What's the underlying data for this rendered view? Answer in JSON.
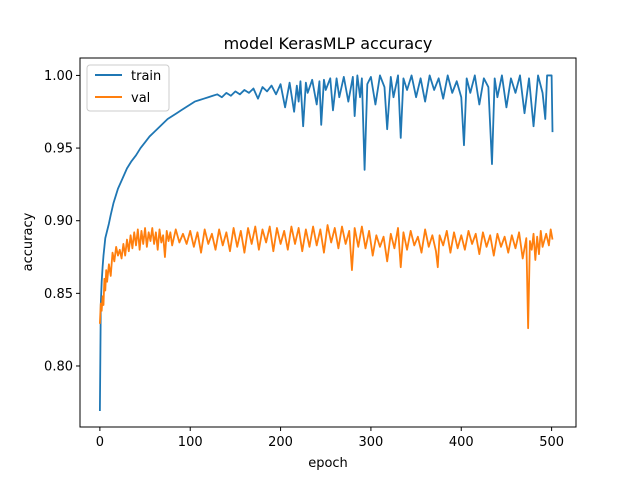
{
  "chart_data": {
    "type": "line",
    "title": "model KerasMLP accuracy",
    "xlabel": "epoch",
    "ylabel": "accuracy",
    "xlim": [
      -22,
      527
    ],
    "ylim": [
      0.758,
      1.012
    ],
    "xticks": [
      0,
      100,
      200,
      300,
      400,
      500
    ],
    "xtick_labels": [
      "0",
      "100",
      "200",
      "300",
      "400",
      "500"
    ],
    "yticks": [
      0.8,
      0.85,
      0.9,
      0.95,
      1.0
    ],
    "ytick_labels": [
      "0.80",
      "0.85",
      "0.90",
      "0.95",
      "1.00"
    ],
    "legend_position": "top-left",
    "grid": false,
    "series": [
      {
        "name": "train",
        "color": "#1f77b4",
        "points": [
          [
            0,
            0.769
          ],
          [
            1,
            0.842
          ],
          [
            2,
            0.858
          ],
          [
            3,
            0.868
          ],
          [
            4,
            0.876
          ],
          [
            5,
            0.882
          ],
          [
            6,
            0.888
          ],
          [
            8,
            0.893
          ],
          [
            10,
            0.898
          ],
          [
            12,
            0.904
          ],
          [
            15,
            0.912
          ],
          [
            18,
            0.918
          ],
          [
            20,
            0.922
          ],
          [
            25,
            0.929
          ],
          [
            30,
            0.936
          ],
          [
            35,
            0.941
          ],
          [
            40,
            0.945
          ],
          [
            45,
            0.95
          ],
          [
            50,
            0.954
          ],
          [
            55,
            0.958
          ],
          [
            60,
            0.961
          ],
          [
            65,
            0.964
          ],
          [
            70,
            0.967
          ],
          [
            75,
            0.97
          ],
          [
            80,
            0.972
          ],
          [
            85,
            0.974
          ],
          [
            90,
            0.976
          ],
          [
            95,
            0.978
          ],
          [
            100,
            0.98
          ],
          [
            105,
            0.982
          ],
          [
            110,
            0.983
          ],
          [
            115,
            0.984
          ],
          [
            120,
            0.985
          ],
          [
            125,
            0.986
          ],
          [
            130,
            0.987
          ],
          [
            135,
            0.985
          ],
          [
            140,
            0.988
          ],
          [
            145,
            0.986
          ],
          [
            150,
            0.989
          ],
          [
            155,
            0.987
          ],
          [
            160,
            0.99
          ],
          [
            165,
            0.988
          ],
          [
            170,
            0.991
          ],
          [
            175,
            0.984
          ],
          [
            180,
            0.992
          ],
          [
            185,
            0.989
          ],
          [
            190,
            0.993
          ],
          [
            195,
            0.987
          ],
          [
            200,
            0.994
          ],
          [
            205,
            0.978
          ],
          [
            210,
            0.995
          ],
          [
            215,
            0.975
          ],
          [
            218,
            0.993
          ],
          [
            220,
            0.982
          ],
          [
            222,
            0.996
          ],
          [
            225,
            0.965
          ],
          [
            228,
            0.995
          ],
          [
            230,
            0.988
          ],
          [
            235,
            0.997
          ],
          [
            240,
            0.98
          ],
          [
            243,
            0.996
          ],
          [
            245,
            0.966
          ],
          [
            248,
            0.997
          ],
          [
            250,
            0.99
          ],
          [
            255,
            0.998
          ],
          [
            258,
            0.976
          ],
          [
            262,
            0.998
          ],
          [
            265,
            0.985
          ],
          [
            270,
            0.999
          ],
          [
            275,
            0.982
          ],
          [
            280,
            0.999
          ],
          [
            282,
            0.972
          ],
          [
            285,
            1.0
          ],
          [
            288,
            0.985
          ],
          [
            290,
            0.998
          ],
          [
            293,
            0.935
          ],
          [
            296,
            0.994
          ],
          [
            300,
            0.999
          ],
          [
            305,
            0.98
          ],
          [
            310,
            1.0
          ],
          [
            315,
            0.992
          ],
          [
            318,
            0.963
          ],
          [
            322,
            0.999
          ],
          [
            325,
            0.985
          ],
          [
            330,
            1.0
          ],
          [
            333,
            0.957
          ],
          [
            336,
            0.998
          ],
          [
            340,
            0.99
          ],
          [
            345,
            1.0
          ],
          [
            350,
            0.985
          ],
          [
            355,
            0.998
          ],
          [
            360,
            0.982
          ],
          [
            365,
            1.0
          ],
          [
            370,
            0.99
          ],
          [
            375,
            0.998
          ],
          [
            380,
            0.984
          ],
          [
            385,
            1.0
          ],
          [
            390,
            0.988
          ],
          [
            395,
            0.996
          ],
          [
            400,
            0.985
          ],
          [
            403,
            0.952
          ],
          [
            406,
            0.998
          ],
          [
            410,
            0.988
          ],
          [
            415,
            1.0
          ],
          [
            420,
            0.98
          ],
          [
            425,
            0.998
          ],
          [
            430,
            0.992
          ],
          [
            434,
            0.939
          ],
          [
            437,
            0.998
          ],
          [
            440,
            0.985
          ],
          [
            445,
            1.0
          ],
          [
            450,
            0.978
          ],
          [
            455,
            0.998
          ],
          [
            460,
            0.988
          ],
          [
            465,
            1.0
          ],
          [
            470,
            0.974
          ],
          [
            475,
            0.998
          ],
          [
            480,
            0.965
          ],
          [
            485,
            1.0
          ],
          [
            490,
            0.988
          ],
          [
            493,
            0.97
          ],
          [
            495,
            1.0
          ],
          [
            500,
            1.0
          ],
          [
            501,
            0.961
          ]
        ]
      },
      {
        "name": "val",
        "color": "#ff7f0e",
        "points": [
          [
            0,
            0.829
          ],
          [
            1,
            0.843
          ],
          [
            2,
            0.838
          ],
          [
            3,
            0.848
          ],
          [
            4,
            0.842
          ],
          [
            5,
            0.86
          ],
          [
            6,
            0.852
          ],
          [
            7,
            0.866
          ],
          [
            8,
            0.858
          ],
          [
            10,
            0.87
          ],
          [
            12,
            0.862
          ],
          [
            14,
            0.878
          ],
          [
            16,
            0.872
          ],
          [
            18,
            0.882
          ],
          [
            20,
            0.876
          ],
          [
            22,
            0.88
          ],
          [
            24,
            0.874
          ],
          [
            26,
            0.884
          ],
          [
            28,
            0.876
          ],
          [
            30,
            0.887
          ],
          [
            32,
            0.879
          ],
          [
            34,
            0.89
          ],
          [
            36,
            0.881
          ],
          [
            38,
            0.892
          ],
          [
            40,
            0.883
          ],
          [
            42,
            0.894
          ],
          [
            44,
            0.88
          ],
          [
            46,
            0.893
          ],
          [
            48,
            0.884
          ],
          [
            50,
            0.895
          ],
          [
            52,
            0.882
          ],
          [
            54,
            0.892
          ],
          [
            56,
            0.886
          ],
          [
            58,
            0.895
          ],
          [
            60,
            0.884
          ],
          [
            62,
            0.892
          ],
          [
            64,
            0.88
          ],
          [
            66,
            0.894
          ],
          [
            68,
            0.885
          ],
          [
            70,
            0.89
          ],
          [
            72,
            0.875
          ],
          [
            74,
            0.893
          ],
          [
            76,
            0.886
          ],
          [
            78,
            0.892
          ],
          [
            80,
            0.883
          ],
          [
            84,
            0.894
          ],
          [
            88,
            0.885
          ],
          [
            92,
            0.891
          ],
          [
            96,
            0.884
          ],
          [
            100,
            0.893
          ],
          [
            104,
            0.882
          ],
          [
            108,
            0.892
          ],
          [
            112,
            0.878
          ],
          [
            116,
            0.894
          ],
          [
            120,
            0.884
          ],
          [
            124,
            0.891
          ],
          [
            128,
            0.88
          ],
          [
            132,
            0.894
          ],
          [
            136,
            0.883
          ],
          [
            140,
            0.892
          ],
          [
            144,
            0.879
          ],
          [
            148,
            0.895
          ],
          [
            152,
            0.882
          ],
          [
            156,
            0.893
          ],
          [
            160,
            0.878
          ],
          [
            164,
            0.895
          ],
          [
            168,
            0.884
          ],
          [
            172,
            0.896
          ],
          [
            176,
            0.88
          ],
          [
            180,
            0.894
          ],
          [
            184,
            0.885
          ],
          [
            188,
            0.896
          ],
          [
            192,
            0.879
          ],
          [
            196,
            0.895
          ],
          [
            200,
            0.884
          ],
          [
            204,
            0.893
          ],
          [
            208,
            0.88
          ],
          [
            212,
            0.896
          ],
          [
            216,
            0.884
          ],
          [
            220,
            0.895
          ],
          [
            224,
            0.879
          ],
          [
            228,
            0.894
          ],
          [
            232,
            0.882
          ],
          [
            236,
            0.896
          ],
          [
            240,
            0.883
          ],
          [
            244,
            0.894
          ],
          [
            248,
            0.878
          ],
          [
            252,
            0.897
          ],
          [
            256,
            0.885
          ],
          [
            260,
            0.895
          ],
          [
            264,
            0.881
          ],
          [
            268,
            0.896
          ],
          [
            272,
            0.884
          ],
          [
            276,
            0.893
          ],
          [
            279,
            0.866
          ],
          [
            282,
            0.895
          ],
          [
            286,
            0.882
          ],
          [
            290,
            0.896
          ],
          [
            294,
            0.881
          ],
          [
            298,
            0.893
          ],
          [
            302,
            0.876
          ],
          [
            306,
            0.89
          ],
          [
            310,
            0.882
          ],
          [
            314,
            0.889
          ],
          [
            318,
            0.872
          ],
          [
            322,
            0.891
          ],
          [
            326,
            0.881
          ],
          [
            330,
            0.895
          ],
          [
            333,
            0.868
          ],
          [
            336,
            0.892
          ],
          [
            340,
            0.88
          ],
          [
            344,
            0.893
          ],
          [
            348,
            0.883
          ],
          [
            352,
            0.889
          ],
          [
            356,
            0.878
          ],
          [
            360,
            0.894
          ],
          [
            364,
            0.882
          ],
          [
            368,
            0.89
          ],
          [
            372,
            0.879
          ],
          [
            374,
            0.868
          ],
          [
            376,
            0.89
          ],
          [
            380,
            0.883
          ],
          [
            384,
            0.893
          ],
          [
            388,
            0.878
          ],
          [
            392,
            0.892
          ],
          [
            396,
            0.881
          ],
          [
            400,
            0.89
          ],
          [
            404,
            0.88
          ],
          [
            408,
            0.893
          ],
          [
            412,
            0.884
          ],
          [
            416,
            0.891
          ],
          [
            420,
            0.877
          ],
          [
            424,
            0.892
          ],
          [
            428,
            0.882
          ],
          [
            432,
            0.89
          ],
          [
            436,
            0.876
          ],
          [
            440,
            0.891
          ],
          [
            444,
            0.882
          ],
          [
            448,
            0.889
          ],
          [
            452,
            0.878
          ],
          [
            456,
            0.89
          ],
          [
            460,
            0.881
          ],
          [
            464,
            0.892
          ],
          [
            468,
            0.874
          ],
          [
            472,
            0.888
          ],
          [
            474,
            0.826
          ],
          [
            476,
            0.886
          ],
          [
            478,
            0.88
          ],
          [
            480,
            0.891
          ],
          [
            482,
            0.873
          ],
          [
            484,
            0.889
          ],
          [
            486,
            0.877
          ],
          [
            488,
            0.893
          ],
          [
            490,
            0.882
          ],
          [
            494,
            0.891
          ],
          [
            497,
            0.883
          ],
          [
            499,
            0.894
          ],
          [
            501,
            0.887
          ]
        ]
      }
    ]
  }
}
